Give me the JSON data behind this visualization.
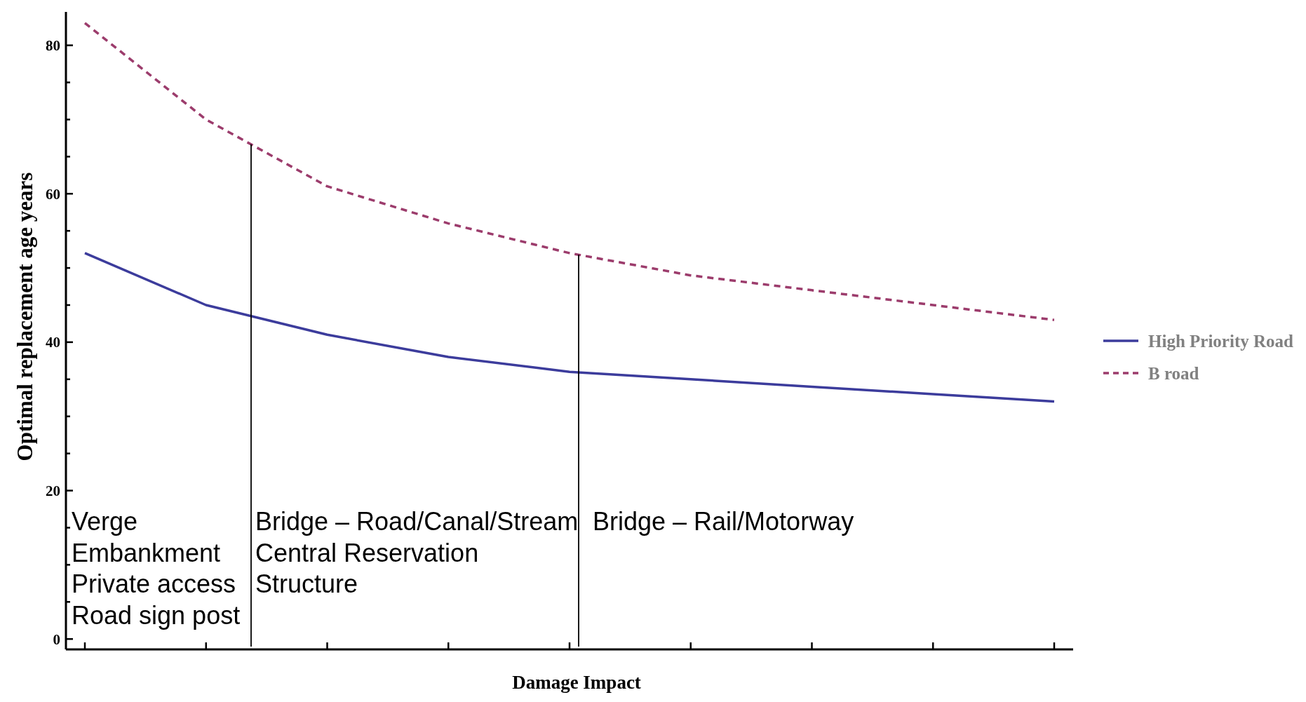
{
  "chart_data": {
    "type": "line",
    "xlabel": "Damage Impact",
    "ylabel": "Optimal replacement age years",
    "categories": [
      null,
      null,
      null,
      null,
      null,
      null,
      null,
      null,
      null
    ],
    "ylim": [
      -1.4,
      84.5
    ],
    "yticks": [
      0,
      {
        "value": 5,
        "label": null
      },
      {
        "value": 10,
        "label": null
      },
      {
        "value": 15,
        "label": null
      },
      20,
      {
        "value": 25,
        "label": null
      },
      {
        "value": 30,
        "label": null
      },
      {
        "value": 35,
        "label": null
      },
      40,
      {
        "value": 45,
        "label": null
      },
      {
        "value": 50,
        "label": null
      },
      {
        "value": 55,
        "label": null
      },
      60,
      {
        "value": 65,
        "label": null
      },
      {
        "value": 70,
        "label": null
      },
      {
        "value": 75,
        "label": null
      },
      80
    ],
    "series": [
      {
        "name": "High Priority Road",
        "color": "#3c3c9c",
        "line_style": "solid",
        "values": [
          52,
          45,
          41,
          38,
          36,
          35,
          34,
          33,
          32
        ]
      },
      {
        "name": "B road",
        "color": "#9c3c6c",
        "line_style": "dashed",
        "values": [
          83,
          70,
          61,
          56,
          52,
          49,
          47,
          45,
          43
        ]
      }
    ],
    "annotations": [
      "Verge\nEmbankment\nPrivate access\nRoad sign post",
      "Bridge – Road/Canal/Stream\nCentral Reservation\nStructure",
      "Bridge – Rail/Motorway"
    ],
    "legend": "right",
    "marker": "none"
  }
}
